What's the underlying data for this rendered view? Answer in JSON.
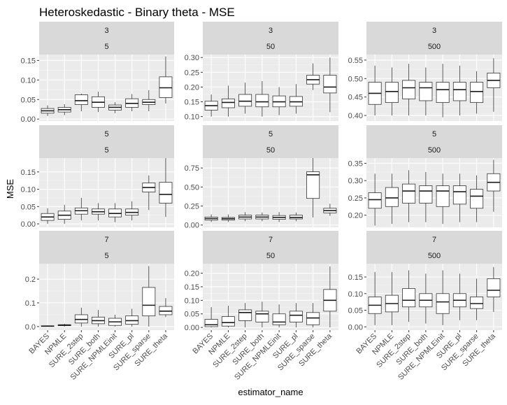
{
  "chart_data": {
    "type": "boxplot",
    "title": "Heteroskedastic - Binary theta - MSE",
    "xlabel": "estimator_name",
    "ylabel": "MSE",
    "categories": [
      "BAYES",
      "NPMLE",
      "SURE_2step",
      "SURE_both",
      "SURE_NPMLEinit",
      "SURE_pl",
      "SURE_sparse",
      "SURE_theta"
    ],
    "facet_row_strip": [
      3,
      5,
      7
    ],
    "facet_col_strip": [
      5,
      50,
      500
    ],
    "box_fields": [
      "whisker_low",
      "q1",
      "median",
      "q3",
      "whisker_high"
    ],
    "panels": [
      {
        "row": "3",
        "col": "5",
        "ylim": [
          -0.005,
          0.165
        ],
        "yticks": [
          0.0,
          0.05,
          0.1,
          0.15
        ],
        "ytick_labels": [
          "0.00",
          "0.05",
          "0.10",
          "0.15"
        ],
        "boxes": [
          [
            0.008,
            0.015,
            0.021,
            0.027,
            0.035
          ],
          [
            0.01,
            0.018,
            0.024,
            0.03,
            0.038
          ],
          [
            0.02,
            0.037,
            0.047,
            0.062,
            0.065
          ],
          [
            0.018,
            0.03,
            0.043,
            0.057,
            0.07
          ],
          [
            0.015,
            0.023,
            0.03,
            0.036,
            0.043
          ],
          [
            0.02,
            0.03,
            0.04,
            0.052,
            0.064
          ],
          [
            0.02,
            0.037,
            0.043,
            0.05,
            0.074
          ],
          [
            0.04,
            0.055,
            0.08,
            0.108,
            0.16
          ]
        ]
      },
      {
        "row": "3",
        "col": "50",
        "ylim": [
          0.085,
          0.31
        ],
        "yticks": [
          0.1,
          0.15,
          0.2,
          0.25,
          0.3
        ],
        "ytick_labels": [
          "0.10",
          "0.15",
          "0.20",
          "0.25",
          "0.30"
        ],
        "boxes": [
          [
            0.1,
            0.122,
            0.137,
            0.152,
            0.175
          ],
          [
            0.1,
            0.13,
            0.148,
            0.16,
            0.205
          ],
          [
            0.11,
            0.135,
            0.152,
            0.175,
            0.215
          ],
          [
            0.1,
            0.133,
            0.15,
            0.175,
            0.22
          ],
          [
            0.105,
            0.133,
            0.15,
            0.17,
            0.2
          ],
          [
            0.11,
            0.135,
            0.15,
            0.168,
            0.21
          ],
          [
            0.19,
            0.21,
            0.225,
            0.24,
            0.28
          ],
          [
            0.115,
            0.18,
            0.2,
            0.24,
            0.3
          ]
        ]
      },
      {
        "row": "3",
        "col": "500",
        "ylim": [
          0.385,
          0.565
        ],
        "yticks": [
          0.4,
          0.45,
          0.5,
          0.55
        ],
        "ytick_labels": [
          "0.40",
          "0.45",
          "0.50",
          "0.55"
        ],
        "boxes": [
          [
            0.4,
            0.43,
            0.46,
            0.49,
            0.535
          ],
          [
            0.4,
            0.435,
            0.465,
            0.49,
            0.53
          ],
          [
            0.4,
            0.445,
            0.475,
            0.495,
            0.54
          ],
          [
            0.4,
            0.44,
            0.475,
            0.49,
            0.53
          ],
          [
            0.395,
            0.435,
            0.47,
            0.49,
            0.54
          ],
          [
            0.4,
            0.44,
            0.47,
            0.49,
            0.535
          ],
          [
            0.405,
            0.435,
            0.465,
            0.49,
            0.52
          ],
          [
            0.41,
            0.475,
            0.495,
            0.515,
            0.555
          ]
        ]
      },
      {
        "row": "5",
        "col": "5",
        "ylim": [
          -0.01,
          0.19
        ],
        "yticks": [
          0.0,
          0.05,
          0.1,
          0.15
        ],
        "ytick_labels": [
          "0.00",
          "0.05",
          "0.10",
          "0.15"
        ],
        "boxes": [
          [
            0.0,
            0.01,
            0.02,
            0.03,
            0.045
          ],
          [
            0.0,
            0.013,
            0.025,
            0.037,
            0.055
          ],
          [
            0.01,
            0.028,
            0.038,
            0.046,
            0.075
          ],
          [
            0.01,
            0.028,
            0.035,
            0.043,
            0.06
          ],
          [
            0.005,
            0.02,
            0.03,
            0.043,
            0.06
          ],
          [
            0.01,
            0.025,
            0.033,
            0.043,
            0.065
          ],
          [
            0.04,
            0.092,
            0.105,
            0.118,
            0.14
          ],
          [
            0.02,
            0.06,
            0.085,
            0.12,
            0.19
          ]
        ]
      },
      {
        "row": "5",
        "col": "50",
        "ylim": [
          -0.03,
          0.88
        ],
        "yticks": [
          0.0,
          0.25,
          0.5,
          0.75
        ],
        "ytick_labels": [
          "0.00",
          "0.25",
          "0.50",
          "0.75"
        ],
        "boxes": [
          [
            0.04,
            0.065,
            0.085,
            0.105,
            0.14
          ],
          [
            0.04,
            0.065,
            0.083,
            0.1,
            0.14
          ],
          [
            0.05,
            0.08,
            0.105,
            0.13,
            0.17
          ],
          [
            0.05,
            0.08,
            0.105,
            0.13,
            0.165
          ],
          [
            0.04,
            0.075,
            0.1,
            0.125,
            0.17
          ],
          [
            0.05,
            0.08,
            0.1,
            0.13,
            0.165
          ],
          [
            0.1,
            0.35,
            0.66,
            0.7,
            0.88
          ],
          [
            0.12,
            0.16,
            0.19,
            0.22,
            0.28
          ]
        ]
      },
      {
        "row": "5",
        "col": "500",
        "ylim": [
          0.165,
          0.365
        ],
        "yticks": [
          0.2,
          0.25,
          0.3,
          0.35
        ],
        "ytick_labels": [
          "0.20",
          "0.25",
          "0.30",
          "0.35"
        ],
        "boxes": [
          [
            0.17,
            0.22,
            0.245,
            0.265,
            0.32
          ],
          [
            0.175,
            0.225,
            0.25,
            0.28,
            0.32
          ],
          [
            0.18,
            0.235,
            0.27,
            0.29,
            0.33
          ],
          [
            0.18,
            0.235,
            0.27,
            0.285,
            0.325
          ],
          [
            0.175,
            0.225,
            0.27,
            0.285,
            0.32
          ],
          [
            0.18,
            0.232,
            0.268,
            0.285,
            0.32
          ],
          [
            0.18,
            0.22,
            0.255,
            0.275,
            0.315
          ],
          [
            0.21,
            0.27,
            0.295,
            0.32,
            0.36
          ]
        ]
      },
      {
        "row": "7",
        "col": "5",
        "ylim": [
          -0.015,
          0.265
        ],
        "yticks": [
          0.0,
          0.1,
          0.2
        ],
        "ytick_labels": [
          "0.0",
          "0.1",
          "0.2"
        ],
        "boxes": [
          [
            0.0,
            0.001,
            0.002,
            0.003,
            0.005
          ],
          [
            0.0,
            0.004,
            0.006,
            0.008,
            0.012
          ],
          [
            0.0,
            0.015,
            0.03,
            0.05,
            0.08
          ],
          [
            0.0,
            0.012,
            0.025,
            0.04,
            0.07
          ],
          [
            0.0,
            0.005,
            0.02,
            0.035,
            0.05
          ],
          [
            0.0,
            0.01,
            0.025,
            0.045,
            0.075
          ],
          [
            0.0,
            0.045,
            0.09,
            0.165,
            0.255
          ],
          [
            0.04,
            0.05,
            0.065,
            0.085,
            0.12
          ]
        ]
      },
      {
        "row": "7",
        "col": "50",
        "ylim": [
          -0.01,
          0.235
        ],
        "yticks": [
          0.0,
          0.05,
          0.1,
          0.15,
          0.2
        ],
        "ytick_labels": [
          "0.00",
          "0.05",
          "0.10",
          "0.15",
          "0.20"
        ],
        "boxes": [
          [
            0.0,
            0.003,
            0.01,
            0.03,
            0.075
          ],
          [
            0.0,
            0.005,
            0.018,
            0.04,
            0.08
          ],
          [
            0.0,
            0.025,
            0.055,
            0.065,
            0.09
          ],
          [
            0.0,
            0.02,
            0.05,
            0.06,
            0.095
          ],
          [
            0.0,
            0.01,
            0.02,
            0.05,
            0.085
          ],
          [
            0.0,
            0.02,
            0.045,
            0.06,
            0.09
          ],
          [
            0.0,
            0.01,
            0.035,
            0.055,
            0.09
          ],
          [
            0.0,
            0.06,
            0.1,
            0.14,
            0.225
          ]
        ]
      },
      {
        "row": "7",
        "col": "500",
        "ylim": [
          -0.01,
          0.19
        ],
        "yticks": [
          0.0,
          0.05,
          0.1,
          0.15
        ],
        "ytick_labels": [
          "0.00",
          "0.05",
          "0.10",
          "0.15"
        ],
        "boxes": [
          [
            0.005,
            0.04,
            0.065,
            0.09,
            0.165
          ],
          [
            0.005,
            0.045,
            0.07,
            0.095,
            0.165
          ],
          [
            0.015,
            0.06,
            0.08,
            0.115,
            0.17
          ],
          [
            0.01,
            0.06,
            0.08,
            0.1,
            0.16
          ],
          [
            0.005,
            0.04,
            0.075,
            0.1,
            0.17
          ],
          [
            0.02,
            0.06,
            0.08,
            0.1,
            0.16
          ],
          [
            0.02,
            0.055,
            0.07,
            0.09,
            0.145
          ],
          [
            0.045,
            0.09,
            0.11,
            0.145,
            0.18
          ]
        ]
      }
    ],
    "grid": true
  }
}
